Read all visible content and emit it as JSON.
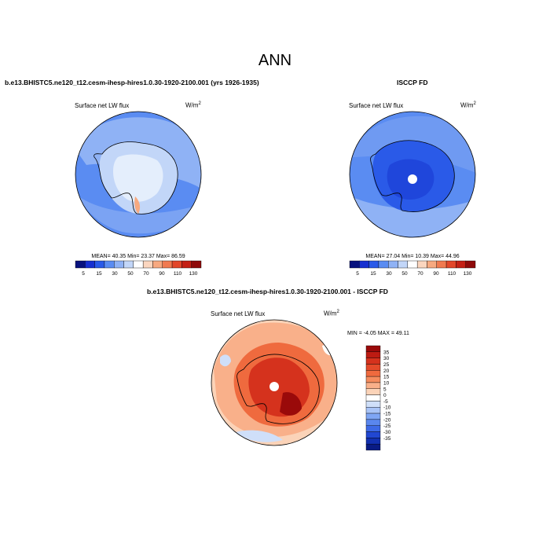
{
  "figure": {
    "title": "ANN",
    "colors": {
      "land_outline": "#000000",
      "ocean_far": "#8fb2f5",
      "pole_hole": "#ffffff"
    }
  },
  "panels": [
    {
      "title": "b.e13.BHISTC5.ne120_t12.cesm-ihesp-hires1.0.30-1920-2100.001 (yrs 1926-1935)",
      "left_label": "Surface net LW flux",
      "units_base": "W/m",
      "units_exp": "2",
      "stats": "MEAN= 40.35  Min= 23.37  Max= 86.59"
    },
    {
      "title": "ISCCP FD",
      "left_label": "Surface net LW flux",
      "units_base": "W/m",
      "units_exp": "2",
      "stats": "MEAN= 27.04  Min= 10.39  Max= 44.96"
    },
    {
      "title": "b.e13.BHISTC5.ne120_t12.cesm-ihesp-hires1.0.30-1920-2100.001 - ISCCP FD",
      "left_label": "Surface net LW flux",
      "units_base": "W/m",
      "units_exp": "2",
      "stats": "MIN =  -4.05 MAX =  49.11"
    }
  ],
  "colorbars": {
    "absolute": {
      "labels": [
        "5",
        "15",
        "30",
        "50",
        "70",
        "90",
        "110",
        "130"
      ],
      "colors": [
        "#08127e",
        "#1730d0",
        "#2a5ae8",
        "#5a8cf2",
        "#8fb2f5",
        "#c2d6f8",
        "#ffffff",
        "#fbd6bf",
        "#f7a980",
        "#f07a50",
        "#e2472a",
        "#c42015",
        "#8e0a0a"
      ]
    },
    "difference": {
      "labels": [
        "35",
        "30",
        "25",
        "20",
        "15",
        "10",
        "5",
        "0",
        "-5",
        "-10",
        "-15",
        "-20",
        "-25",
        "-30",
        "-35"
      ],
      "colors": [
        "#9a0a0a",
        "#bd1b12",
        "#d5321d",
        "#e44a2a",
        "#ef6a3e",
        "#f58c5e",
        "#f9b08a",
        "#fbd3b8",
        "#ffffff",
        "#cfdff9",
        "#a9c4f7",
        "#7fa6f4",
        "#5a87ee",
        "#3d6ae6",
        "#2147d2",
        "#1230b0",
        "#091b84"
      ]
    }
  }
}
